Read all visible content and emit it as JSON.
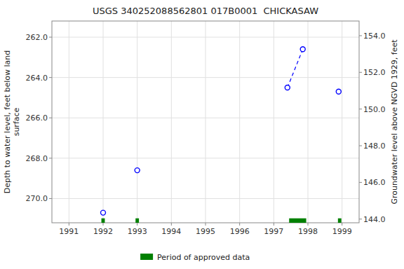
{
  "chart_data": {
    "type": "scatter",
    "title": "USGS 340252088562801 017B0001  CHICKASAW",
    "y_label": "Depth to water level, feet below land\nsurface",
    "y2_label": "Groundwater level above NGVD 1929, feet",
    "xlim": [
      1990.5,
      1999.5
    ],
    "xticks": [
      1991,
      1992,
      1993,
      1994,
      1995,
      1996,
      1997,
      1998,
      1999
    ],
    "ylim": [
      271.2,
      261.2
    ],
    "yticks": [
      {
        "value": 262.0,
        "label": "262.0"
      },
      {
        "value": 264.0,
        "label": "264.0"
      },
      {
        "value": 266.0,
        "label": "266.0"
      },
      {
        "value": 268.0,
        "label": "268.0"
      },
      {
        "value": 270.0,
        "label": "270.0"
      }
    ],
    "y2lim": [
      143.8,
      154.8
    ],
    "y2ticks": [
      {
        "value": 144.0,
        "label": "144.0"
      },
      {
        "value": 146.0,
        "label": "146.0"
      },
      {
        "value": 148.0,
        "label": "148.0"
      },
      {
        "value": 150.0,
        "label": "150.0"
      },
      {
        "value": 152.0,
        "label": "152.0"
      },
      {
        "value": 154.0,
        "label": "154.0"
      }
    ],
    "grid": true,
    "legend": "bottom",
    "series": [
      {
        "type": "scatter",
        "x": [
          1992.0,
          1993.0,
          1997.4,
          1997.85,
          1998.9
        ],
        "values": [
          270.7,
          268.6,
          264.5,
          262.6,
          264.7
        ],
        "color": "blue",
        "marker": "circle"
      },
      {
        "type": "line",
        "x": [
          1997.4,
          1997.85
        ],
        "values": [
          264.5,
          262.6
        ],
        "color": "blue",
        "line_style": "dashed"
      },
      {
        "type": "span",
        "name": "Period of approved data",
        "color": "#008000",
        "x_start": [
          1991.95,
          1992.95,
          1997.45,
          1998.88
        ],
        "x_end": [
          1992.05,
          1993.05,
          1997.95,
          1998.98
        ]
      }
    ]
  }
}
